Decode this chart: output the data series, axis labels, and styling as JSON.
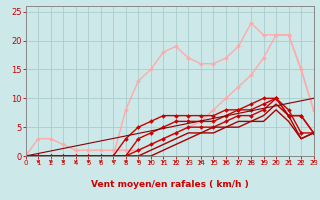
{
  "title": "",
  "xlabel": "Vent moyen/en rafales ( km/h )",
  "ylabel": "",
  "bg_color": "#cce8e8",
  "grid_color": "#aacccc",
  "xlim": [
    0,
    23
  ],
  "ylim": [
    0,
    26
  ],
  "xticks": [
    0,
    1,
    2,
    3,
    4,
    5,
    6,
    7,
    8,
    9,
    10,
    11,
    12,
    13,
    14,
    15,
    16,
    17,
    18,
    19,
    20,
    21,
    22,
    23
  ],
  "yticks": [
    0,
    5,
    10,
    15,
    20,
    25
  ],
  "lines": [
    {
      "x": [
        0,
        1,
        2,
        3,
        4,
        5,
        6,
        7,
        8,
        9,
        10,
        11,
        12,
        13,
        14,
        15,
        16,
        17,
        18,
        19,
        20,
        21,
        22,
        23
      ],
      "y": [
        0,
        0,
        0,
        0,
        0,
        0,
        0,
        0,
        8,
        13,
        15,
        18,
        19,
        17,
        16,
        16,
        17,
        19,
        23,
        21,
        21,
        21,
        15,
        8
      ],
      "color": "#ffaaaa",
      "lw": 1.0,
      "marker": "D",
      "ms": 2.0
    },
    {
      "x": [
        0,
        1,
        2,
        3,
        4,
        5,
        6,
        7,
        8,
        9,
        10,
        11,
        12,
        13,
        14,
        15,
        16,
        17,
        18,
        19,
        20,
        21,
        22,
        23
      ],
      "y": [
        0,
        3,
        3,
        2,
        1,
        1,
        1,
        1,
        1,
        1,
        2,
        3,
        4,
        5,
        6,
        8,
        10,
        12,
        14,
        17,
        21,
        21,
        15,
        8
      ],
      "color": "#ffaaaa",
      "lw": 1.0,
      "marker": "D",
      "ms": 2.0
    },
    {
      "x": [
        0,
        1,
        2,
        3,
        4,
        5,
        6,
        7,
        8,
        9,
        10,
        11,
        12,
        13,
        14,
        15,
        16,
        17,
        18,
        19,
        20,
        21,
        22,
        23
      ],
      "y": [
        0,
        0,
        0,
        0,
        0,
        0,
        0,
        0,
        3,
        5,
        6,
        7,
        7,
        7,
        7,
        7,
        8,
        8,
        9,
        10,
        10,
        7,
        7,
        4
      ],
      "color": "#cc0000",
      "lw": 1.0,
      "marker": "D",
      "ms": 2.0
    },
    {
      "x": [
        0,
        1,
        2,
        3,
        4,
        5,
        6,
        7,
        8,
        9,
        10,
        11,
        12,
        13,
        14,
        15,
        16,
        17,
        18,
        19,
        20,
        21,
        22,
        23
      ],
      "y": [
        0,
        0,
        0,
        0,
        0,
        0,
        0,
        0,
        0,
        3,
        4,
        5,
        6,
        6,
        6,
        6,
        7,
        8,
        8,
        9,
        10,
        7,
        7,
        4
      ],
      "color": "#cc0000",
      "lw": 1.0,
      "marker": "D",
      "ms": 2.0
    },
    {
      "x": [
        0,
        1,
        2,
        3,
        4,
        5,
        6,
        7,
        8,
        9,
        10,
        11,
        12,
        13,
        14,
        15,
        16,
        17,
        18,
        19,
        20,
        21,
        22,
        23
      ],
      "y": [
        0,
        0,
        0,
        0,
        0,
        0,
        0,
        0,
        0,
        1,
        2,
        3,
        4,
        5,
        5,
        5,
        6,
        7,
        7,
        8,
        10,
        8,
        4,
        4
      ],
      "color": "#cc0000",
      "lw": 1.0,
      "marker": "D",
      "ms": 2.0
    },
    {
      "x": [
        0,
        1,
        2,
        3,
        4,
        5,
        6,
        7,
        8,
        9,
        10,
        11,
        12,
        13,
        14,
        15,
        16,
        17,
        18,
        19,
        20,
        21,
        22,
        23
      ],
      "y": [
        0,
        0,
        0,
        0,
        0,
        0,
        0,
        0,
        0,
        0,
        1,
        2,
        3,
        4,
        4,
        5,
        5,
        6,
        6,
        7,
        9,
        7,
        3,
        4
      ],
      "color": "#aa0000",
      "lw": 1.0,
      "marker": "None",
      "ms": 0
    },
    {
      "x": [
        0,
        1,
        2,
        3,
        4,
        5,
        6,
        7,
        8,
        9,
        10,
        11,
        12,
        13,
        14,
        15,
        16,
        17,
        18,
        19,
        20,
        21,
        22,
        23
      ],
      "y": [
        0,
        0,
        0,
        0,
        0,
        0,
        0,
        0,
        0,
        0,
        0,
        1,
        2,
        3,
        4,
        4,
        5,
        5,
        6,
        6,
        8,
        6,
        3,
        4
      ],
      "color": "#aa0000",
      "lw": 1.0,
      "marker": "None",
      "ms": 0
    },
    {
      "x": [
        0,
        23
      ],
      "y": [
        0,
        10
      ],
      "color": "#880000",
      "lw": 0.8,
      "marker": "None",
      "ms": 0
    }
  ],
  "arrow_color": "#cc0000",
  "xlabel_color": "#cc0000",
  "tick_color": "#cc0000",
  "axis_color": "#888888",
  "xlabel_fontsize": 6.5,
  "tick_fontsize_x": 5.0,
  "tick_fontsize_y": 6.0
}
